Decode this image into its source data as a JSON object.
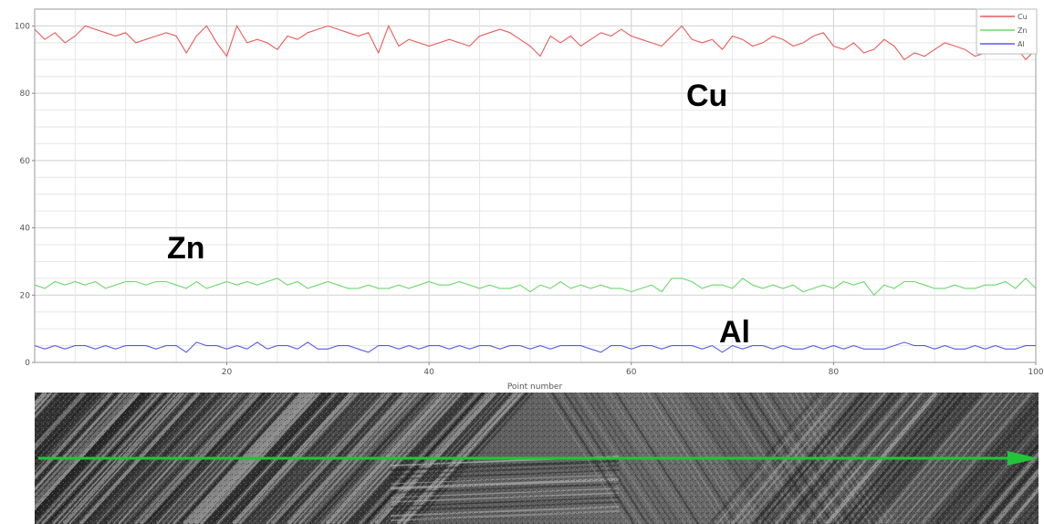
{
  "chart_data": {
    "type": "line",
    "title": "",
    "xlabel": "Point number",
    "ylabel": "",
    "xlim": [
      1,
      100
    ],
    "ylim": [
      0,
      105
    ],
    "x_ticks": [
      "20",
      "40",
      "60",
      "80",
      "100"
    ],
    "y_ticks": [
      "0",
      "20",
      "40",
      "60",
      "80",
      "100"
    ],
    "grid": true,
    "legend_position": "top-right",
    "series": [
      {
        "name": "Cu",
        "color": "#e85a5a",
        "values": [
          99,
          96,
          98,
          95,
          97,
          100,
          99,
          98,
          97,
          98,
          95,
          96,
          97,
          98,
          97,
          92,
          97,
          100,
          95,
          91,
          100,
          95,
          96,
          95,
          93,
          97,
          96,
          98,
          99,
          100,
          99,
          98,
          97,
          98,
          92,
          100,
          94,
          96,
          95,
          94,
          95,
          96,
          95,
          94,
          97,
          98,
          99,
          98,
          96,
          94,
          91,
          97,
          95,
          97,
          94,
          96,
          98,
          97,
          99,
          97,
          96,
          95,
          94,
          97,
          100,
          96,
          95,
          96,
          93,
          97,
          96,
          94,
          95,
          97,
          96,
          94,
          95,
          97,
          98,
          94,
          93,
          95,
          92,
          93,
          96,
          94,
          90,
          92,
          91,
          93,
          95,
          94,
          93,
          91,
          92,
          94,
          96,
          94,
          90,
          93
        ]
      },
      {
        "name": "Zn",
        "color": "#6ad86a",
        "values": [
          23,
          22,
          24,
          23,
          24,
          23,
          24,
          22,
          23,
          24,
          24,
          23,
          24,
          24,
          23,
          22,
          24,
          22,
          23,
          24,
          23,
          24,
          23,
          24,
          25,
          23,
          24,
          22,
          23,
          24,
          23,
          22,
          22,
          23,
          22,
          22,
          23,
          22,
          23,
          24,
          23,
          23,
          24,
          23,
          22,
          23,
          22,
          22,
          23,
          21,
          23,
          22,
          24,
          22,
          23,
          22,
          23,
          22,
          22,
          21,
          22,
          23,
          21,
          25,
          25,
          24,
          22,
          23,
          23,
          22,
          25,
          23,
          22,
          23,
          22,
          23,
          21,
          22,
          23,
          22,
          24,
          23,
          24,
          20,
          23,
          22,
          24,
          24,
          23,
          22,
          22,
          23,
          22,
          22,
          23,
          23,
          24,
          22,
          25,
          22
        ]
      },
      {
        "name": "Al",
        "color": "#5a5ae8",
        "values": [
          5,
          4,
          5,
          4,
          5,
          5,
          4,
          5,
          4,
          5,
          5,
          5,
          4,
          5,
          5,
          3,
          6,
          5,
          5,
          4,
          5,
          4,
          6,
          4,
          5,
          5,
          4,
          6,
          4,
          4,
          5,
          5,
          4,
          3,
          5,
          5,
          4,
          5,
          4,
          5,
          5,
          4,
          5,
          4,
          5,
          5,
          4,
          5,
          5,
          4,
          5,
          4,
          5,
          5,
          5,
          4,
          3,
          5,
          5,
          4,
          5,
          5,
          4,
          5,
          5,
          5,
          4,
          5,
          3,
          5,
          4,
          5,
          5,
          4,
          5,
          4,
          4,
          5,
          4,
          5,
          4,
          5,
          4,
          4,
          4,
          5,
          6,
          5,
          5,
          4,
          5,
          4,
          4,
          5,
          4,
          5,
          4,
          4,
          5,
          5
        ]
      }
    ],
    "annotations": [
      "Cu",
      "Zn",
      "Al"
    ]
  },
  "micrograph": {
    "description_icon": "sem-micrograph-image",
    "scan_line_color": "#22c43a"
  }
}
